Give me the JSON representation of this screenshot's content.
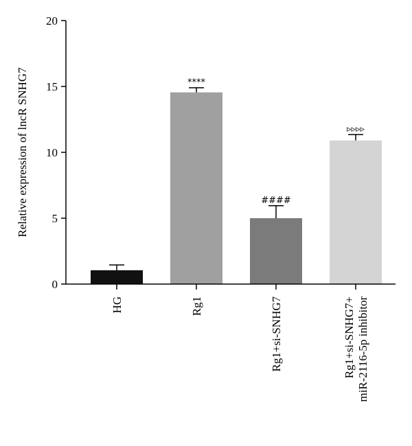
{
  "chart_data": {
    "type": "bar",
    "ylabel": "Relative expression of lncR SNHG7",
    "ylim": [
      0,
      20
    ],
    "yticks": [
      0,
      5,
      10,
      15,
      20
    ],
    "categories": [
      [
        "HG"
      ],
      [
        "Rg1"
      ],
      [
        "Rg1+si-SNHG7"
      ],
      [
        "Rg1+si-SNHG7+",
        "miR-2116-5p inhibitor"
      ]
    ],
    "values": [
      1.05,
      14.55,
      5.0,
      10.9
    ],
    "errors": [
      0.4,
      0.35,
      0.95,
      0.45
    ],
    "annotations": [
      "",
      "****",
      "####",
      "▹▹▹▹"
    ],
    "colors": [
      "#111111",
      "#a0a0a0",
      "#7b7b7b",
      "#d4d4d4"
    ]
  }
}
